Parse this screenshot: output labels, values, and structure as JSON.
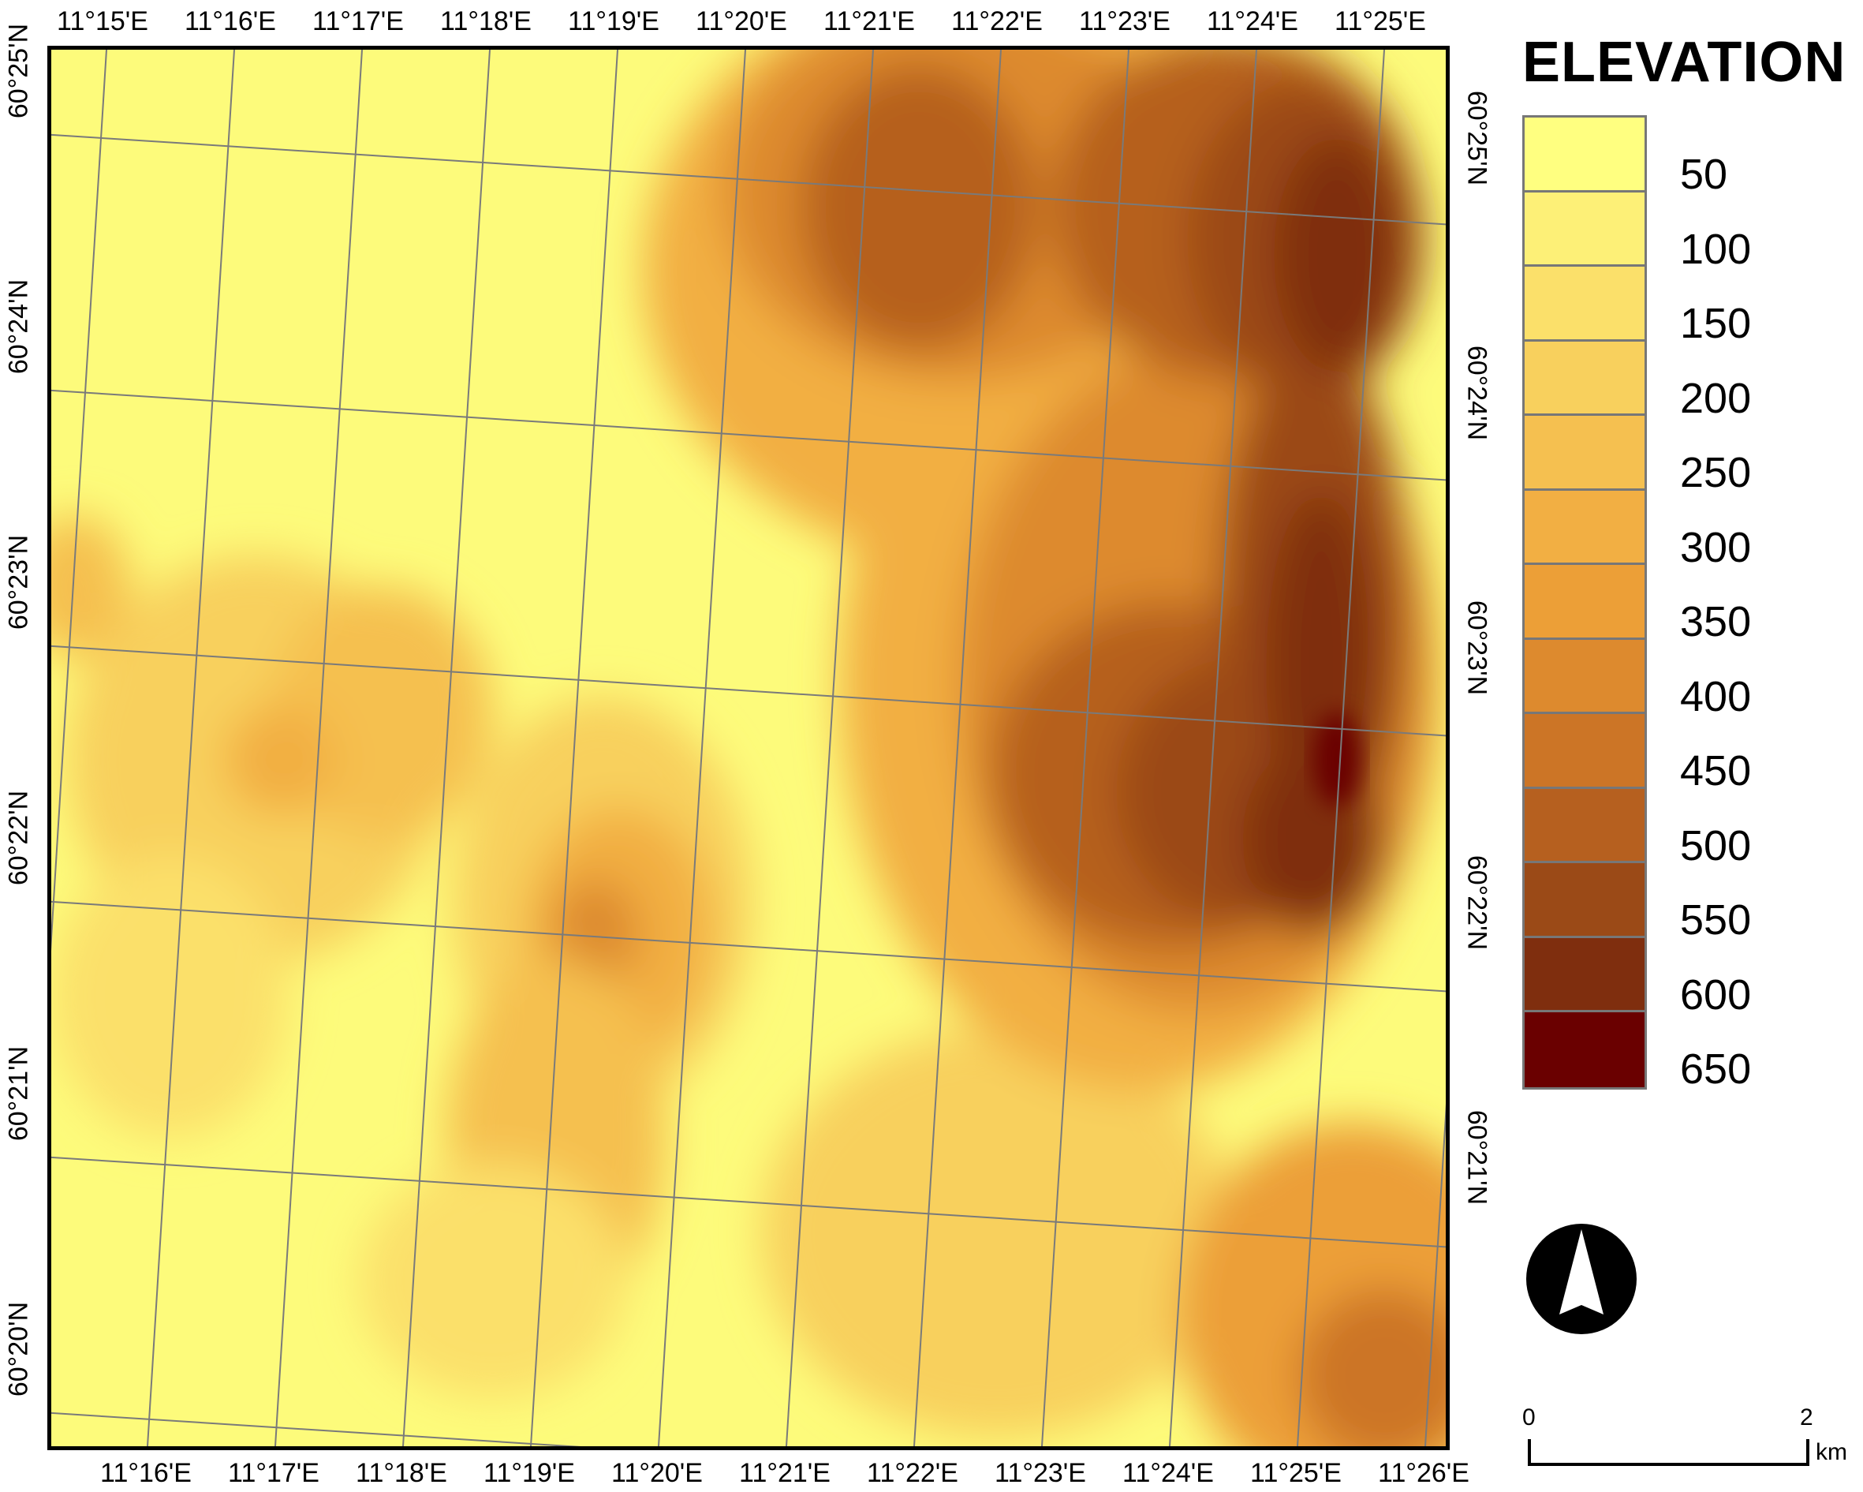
{
  "map": {
    "top_lon_labels": [
      "11°15'E",
      "11°16'E",
      "11°17'E",
      "11°18'E",
      "11°19'E",
      "11°20'E",
      "11°21'E",
      "11°22'E",
      "11°23'E",
      "11°24'E",
      "11°25'E"
    ],
    "bottom_lon_labels": [
      "11°16'E",
      "11°17'E",
      "11°18'E",
      "11°19'E",
      "11°20'E",
      "11°21'E",
      "11°22'E",
      "11°23'E",
      "11°24'E",
      "11°25'E",
      "11°26'E"
    ],
    "left_lat_labels": [
      "60°25'N",
      "60°24'N",
      "60°23'N",
      "60°22'N",
      "60°21'N",
      "60°20'N"
    ],
    "right_lat_labels": [
      "60°25'N",
      "60°24'N",
      "60°23'N",
      "60°22'N",
      "60°21'N"
    ],
    "colors": {
      "grid_line": "#7a7a7a",
      "frame": "#000000",
      "background_lowland": "#fdfb7b"
    }
  },
  "legend": {
    "title": "ELEVATION",
    "classes": [
      {
        "label": "50",
        "color": "#ffff80"
      },
      {
        "label": "100",
        "color": "#fdf077"
      },
      {
        "label": "150",
        "color": "#fbe06a"
      },
      {
        "label": "200",
        "color": "#f8d05d"
      },
      {
        "label": "250",
        "color": "#f5c050"
      },
      {
        "label": "300",
        "color": "#f2af43"
      },
      {
        "label": "350",
        "color": "#ec9f37"
      },
      {
        "label": "400",
        "color": "#dd8a2e"
      },
      {
        "label": "450",
        "color": "#cc7526"
      },
      {
        "label": "500",
        "color": "#b6601f"
      },
      {
        "label": "550",
        "color": "#9b4a17"
      },
      {
        "label": "600",
        "color": "#7f2e0e"
      },
      {
        "label": "650",
        "color": "#6a0000"
      }
    ]
  },
  "north_arrow": {
    "icon": "north-arrow-icon"
  },
  "scale_bar": {
    "start_label": "0",
    "end_label": "2",
    "unit": "km"
  }
}
